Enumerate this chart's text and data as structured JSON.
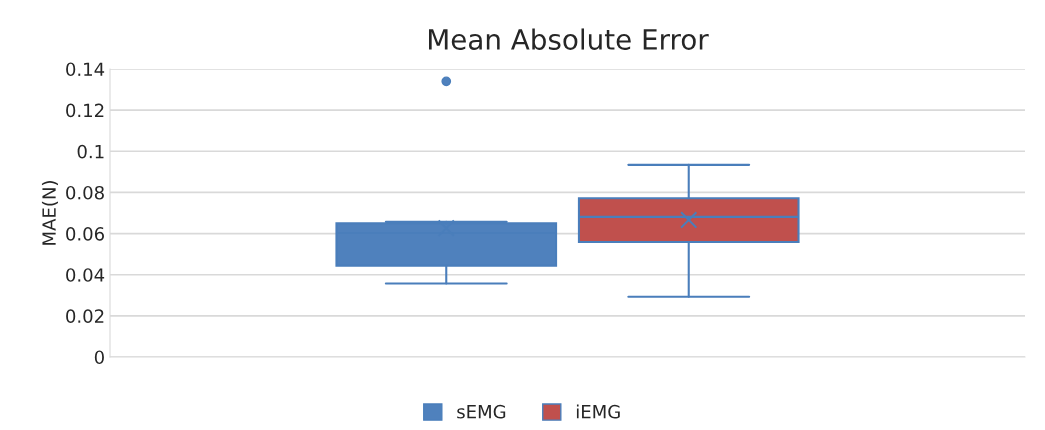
{
  "chart_data": {
    "type": "box",
    "title": "Mean Absolute Error",
    "ylabel": "MAE(N)",
    "categories": [
      null
    ],
    "series": [
      {
        "name": "sEMG",
        "color": "#4f81bd",
        "boxes": [
          {
            "low": 0.0357,
            "q1": 0.0444,
            "median": 0.0603,
            "q3": 0.065,
            "high": 0.0657,
            "mean": 0.0626,
            "outliers": [
              0.134
            ]
          }
        ]
      },
      {
        "name": "iEMG",
        "color": "#c0504d",
        "boxes": [
          {
            "low": 0.0293,
            "q1": 0.0559,
            "median": 0.0681,
            "q3": 0.0772,
            "high": 0.0934,
            "mean": 0.0666
          }
        ]
      }
    ],
    "ylim": [
      0,
      0.14
    ],
    "yticks": [
      0,
      0.02,
      0.04,
      0.06,
      0.08,
      0.1,
      0.12,
      0.14
    ],
    "grid": "y",
    "legend": "bottom",
    "marker": "cross"
  }
}
